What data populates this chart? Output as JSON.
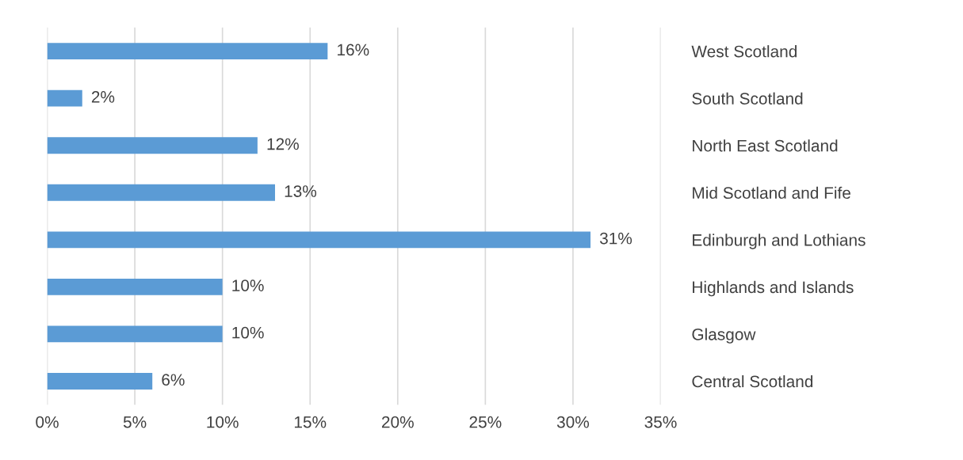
{
  "chart_data": {
    "type": "bar",
    "orientation": "horizontal",
    "categories": [
      "West Scotland",
      "South Scotland",
      "North East Scotland",
      "Mid Scotland and Fife",
      "Edinburgh and Lothians",
      "Highlands and Islands",
      "Glasgow",
      "Central Scotland"
    ],
    "values": [
      16,
      2,
      12,
      13,
      31,
      10,
      10,
      6
    ],
    "color": "#5b9bd5",
    "xlim": [
      0,
      35
    ],
    "xticks": [
      {
        "value": 0,
        "label": "0%"
      },
      {
        "value": 5,
        "label": "5%"
      },
      {
        "value": 10,
        "label": "10%"
      },
      {
        "value": 15,
        "label": "15%"
      },
      {
        "value": 20,
        "label": "20%"
      },
      {
        "value": 25,
        "label": "25%"
      },
      {
        "value": 30,
        "label": "30%"
      },
      {
        "value": 35,
        "label": "35%"
      }
    ],
    "value_labels": [
      "16%",
      "2%",
      "12%",
      "13%",
      "31%",
      "10%",
      "10%",
      "6%"
    ],
    "grid": "x",
    "legend": false
  }
}
